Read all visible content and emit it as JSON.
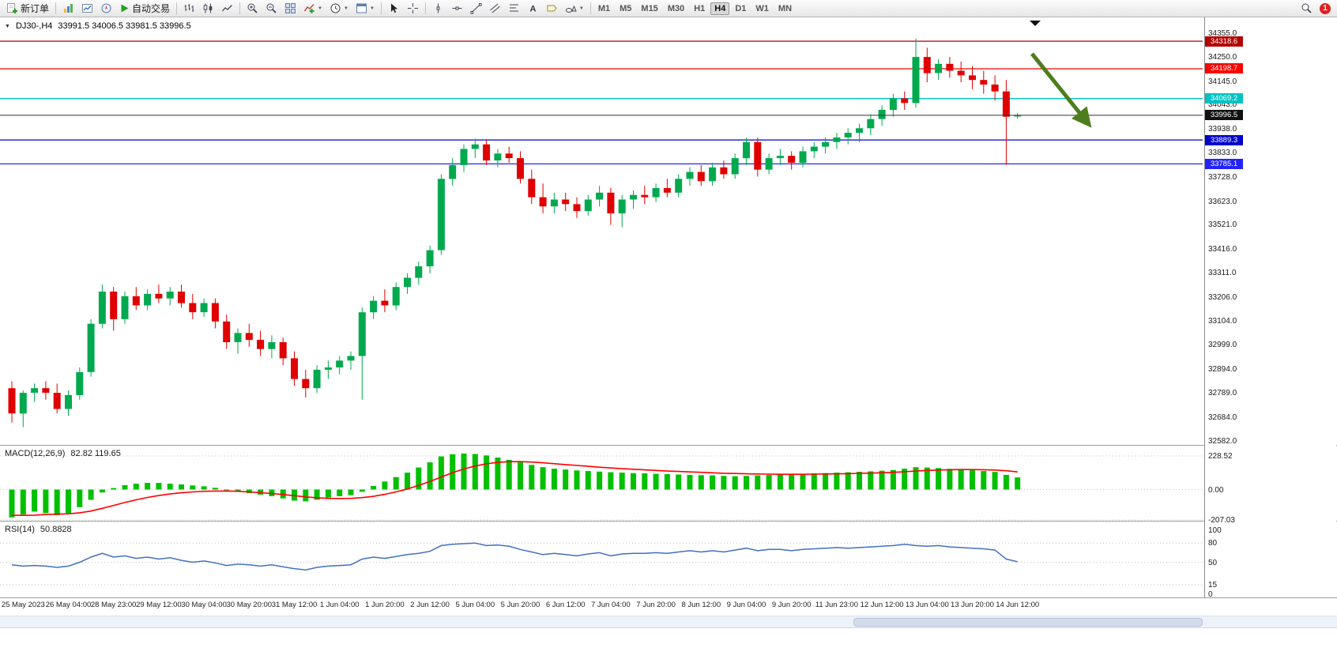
{
  "toolbar": {
    "new_order_label": "新订单",
    "autotrading_label": "自动交易",
    "timeframes": [
      "M1",
      "M5",
      "M15",
      "M30",
      "H1",
      "H4",
      "D1",
      "W1",
      "MN"
    ],
    "active_timeframe": "H4",
    "notification_count": "1",
    "text_tool_letter": "A",
    "dropdown_caret": "▼"
  },
  "chart_header": {
    "caret": "▼",
    "symbol_period": "DJ30-,H4",
    "ohlc_text": "33991.5 34006.5 33981.5 33996.5"
  },
  "chart_data": {
    "type": "candlestick",
    "symbol": "DJ30-",
    "period": "H4",
    "last_ohlc": {
      "open": 33991.5,
      "high": 34006.5,
      "low": 33981.5,
      "close": 33996.5
    },
    "price_scale": {
      "max": 34422,
      "min": 32560
    },
    "price_axis_ticks": [
      "34355.0",
      "34250.0",
      "34145.0",
      "34043.0",
      "33938.0",
      "33833.0",
      "33728.0",
      "33623.0",
      "33521.0",
      "33416.0",
      "33311.0",
      "33206.0",
      "33104.0",
      "32999.0",
      "32894.0",
      "32789.0",
      "32684.0",
      "32582.0"
    ],
    "hlines": [
      {
        "price": 34318.6,
        "label": "34318.6",
        "color": "#b30000"
      },
      {
        "price": 34198.7,
        "label": "34198.7",
        "color": "#ff0000"
      },
      {
        "price": 34069.2,
        "label": "34069.2",
        "color": "#00c2c2"
      },
      {
        "price": 33996.5,
        "label": "33996.5",
        "color": "#333333",
        "badge": "#111111",
        "role": "current-price"
      },
      {
        "price": 33889.3,
        "label": "33889.3",
        "color": "#0000cc"
      },
      {
        "price": 33785.1,
        "label": "33785.1",
        "color": "#2222ff"
      }
    ],
    "colors": {
      "bull": "#00a94e",
      "bear": "#e00000",
      "macd_hist": "#00c000",
      "macd_signal": "#ff0000",
      "rsi": "#4070c0",
      "arrow": "#4e7d1e"
    },
    "candles": [
      [
        32810,
        32840,
        32660,
        32700
      ],
      [
        32700,
        32800,
        32640,
        32790
      ],
      [
        32790,
        32830,
        32750,
        32810
      ],
      [
        32810,
        32840,
        32760,
        32790
      ],
      [
        32790,
        32830,
        32700,
        32720
      ],
      [
        32720,
        32800,
        32690,
        32780
      ],
      [
        32780,
        32900,
        32760,
        32880
      ],
      [
        32880,
        33110,
        32860,
        33090
      ],
      [
        33090,
        33260,
        33070,
        33230
      ],
      [
        33230,
        33250,
        33060,
        33110
      ],
      [
        33110,
        33230,
        33090,
        33210
      ],
      [
        33210,
        33250,
        33150,
        33170
      ],
      [
        33170,
        33240,
        33150,
        33220
      ],
      [
        33220,
        33260,
        33180,
        33200
      ],
      [
        33200,
        33250,
        33170,
        33230
      ],
      [
        33230,
        33260,
        33160,
        33180
      ],
      [
        33180,
        33220,
        33110,
        33140
      ],
      [
        33140,
        33200,
        33120,
        33180
      ],
      [
        33180,
        33200,
        33070,
        33100
      ],
      [
        33100,
        33130,
        32980,
        33010
      ],
      [
        33010,
        33070,
        32960,
        33050
      ],
      [
        33050,
        33090,
        32990,
        33020
      ],
      [
        33020,
        33060,
        32950,
        32980
      ],
      [
        32980,
        33040,
        32940,
        33010
      ],
      [
        33010,
        33030,
        32910,
        32940
      ],
      [
        32940,
        32970,
        32820,
        32850
      ],
      [
        32850,
        32890,
        32770,
        32810
      ],
      [
        32810,
        32910,
        32790,
        32890
      ],
      [
        32890,
        32930,
        32850,
        32900
      ],
      [
        32900,
        32950,
        32870,
        32930
      ],
      [
        32930,
        32970,
        32890,
        32950
      ],
      [
        32950,
        33160,
        32760,
        33140
      ],
      [
        33140,
        33210,
        33110,
        33190
      ],
      [
        33190,
        33240,
        33140,
        33170
      ],
      [
        33170,
        33270,
        33150,
        33250
      ],
      [
        33250,
        33310,
        33220,
        33290
      ],
      [
        33290,
        33360,
        33260,
        33340
      ],
      [
        33340,
        33430,
        33310,
        33410
      ],
      [
        33410,
        33740,
        33390,
        33720
      ],
      [
        33720,
        33810,
        33690,
        33780
      ],
      [
        33780,
        33870,
        33750,
        33850
      ],
      [
        33850,
        33895,
        33810,
        33870
      ],
      [
        33870,
        33890,
        33780,
        33800
      ],
      [
        33800,
        33850,
        33770,
        33830
      ],
      [
        33830,
        33860,
        33790,
        33810
      ],
      [
        33810,
        33840,
        33700,
        33720
      ],
      [
        33720,
        33760,
        33610,
        33640
      ],
      [
        33640,
        33700,
        33570,
        33600
      ],
      [
        33600,
        33660,
        33570,
        33630
      ],
      [
        33630,
        33660,
        33580,
        33610
      ],
      [
        33610,
        33640,
        33550,
        33580
      ],
      [
        33580,
        33650,
        33560,
        33630
      ],
      [
        33630,
        33690,
        33600,
        33660
      ],
      [
        33660,
        33680,
        33520,
        33570
      ],
      [
        33570,
        33650,
        33510,
        33630
      ],
      [
        33630,
        33670,
        33590,
        33650
      ],
      [
        33650,
        33690,
        33610,
        33640
      ],
      [
        33640,
        33700,
        33620,
        33680
      ],
      [
        33680,
        33720,
        33640,
        33660
      ],
      [
        33660,
        33740,
        33640,
        33720
      ],
      [
        33720,
        33770,
        33690,
        33750
      ],
      [
        33750,
        33780,
        33690,
        33710
      ],
      [
        33710,
        33790,
        33690,
        33770
      ],
      [
        33770,
        33800,
        33720,
        33740
      ],
      [
        33740,
        33830,
        33720,
        33810
      ],
      [
        33810,
        33900,
        33780,
        33880
      ],
      [
        33880,
        33900,
        33730,
        33760
      ],
      [
        33760,
        33830,
        33740,
        33810
      ],
      [
        33810,
        33850,
        33780,
        33820
      ],
      [
        33820,
        33840,
        33760,
        33790
      ],
      [
        33790,
        33860,
        33770,
        33840
      ],
      [
        33840,
        33880,
        33810,
        33860
      ],
      [
        33860,
        33900,
        33830,
        33880
      ],
      [
        33880,
        33920,
        33850,
        33900
      ],
      [
        33900,
        33940,
        33870,
        33920
      ],
      [
        33920,
        33960,
        33880,
        33940
      ],
      [
        33940,
        34000,
        33910,
        33980
      ],
      [
        33980,
        34040,
        33950,
        34020
      ],
      [
        34020,
        34090,
        33990,
        34070
      ],
      [
        34070,
        34100,
        34020,
        34050
      ],
      [
        34050,
        34330,
        34030,
        34250
      ],
      [
        34250,
        34290,
        34140,
        34180
      ],
      [
        34180,
        34240,
        34150,
        34220
      ],
      [
        34220,
        34250,
        34160,
        34190
      ],
      [
        34190,
        34230,
        34140,
        34170
      ],
      [
        34170,
        34210,
        34110,
        34150
      ],
      [
        34150,
        34190,
        34090,
        34130
      ],
      [
        34130,
        34170,
        34060,
        34100
      ],
      [
        34100,
        34150,
        33780,
        33990
      ],
      [
        33991.5,
        34006.5,
        33981.5,
        33996.5
      ]
    ],
    "macd": {
      "label": "MACD(12,26,9)",
      "value_text": "82.82 119.65",
      "axis_ticks": [
        "228.52",
        "0.00",
        "-207.03"
      ],
      "tick_values": [
        228.52,
        0,
        -207.03
      ],
      "histogram": [
        -190,
        -170,
        -150,
        -160,
        -175,
        -160,
        -120,
        -70,
        -20,
        10,
        30,
        40,
        45,
        45,
        40,
        35,
        28,
        22,
        12,
        0,
        -12,
        -25,
        -35,
        -45,
        -60,
        -75,
        -80,
        -70,
        -55,
        -45,
        -38,
        -15,
        25,
        55,
        85,
        115,
        150,
        185,
        225,
        240,
        245,
        242,
        232,
        218,
        202,
        185,
        168,
        152,
        142,
        136,
        130,
        126,
        122,
        118,
        115,
        112,
        110,
        107,
        105,
        102,
        100,
        98,
        96,
        93,
        91,
        93,
        96,
        99,
        102,
        104,
        107,
        110,
        112,
        115,
        118,
        121,
        124,
        128,
        133,
        142,
        152,
        150,
        146,
        141,
        136,
        131,
        126,
        120,
        100,
        82.82
      ],
      "signal": [
        -175,
        -176,
        -174,
        -170,
        -168,
        -165,
        -158,
        -146,
        -128,
        -108,
        -88,
        -70,
        -54,
        -41,
        -30,
        -22,
        -16,
        -12,
        -10,
        -10,
        -12,
        -16,
        -21,
        -27,
        -34,
        -42,
        -50,
        -56,
        -60,
        -61,
        -60,
        -55,
        -46,
        -33,
        -16,
        4,
        28,
        55,
        85,
        115,
        140,
        160,
        175,
        185,
        190,
        190,
        187,
        182,
        176,
        170,
        164,
        158,
        152,
        147,
        142,
        138,
        134,
        130,
        126,
        123,
        120,
        117,
        114,
        111,
        109,
        107,
        106,
        105,
        104,
        104,
        104,
        105,
        106,
        107,
        108,
        110,
        112,
        114,
        117,
        121,
        126,
        130,
        133,
        135,
        136,
        136,
        135,
        133,
        128,
        119.65
      ]
    },
    "rsi": {
      "label": "RSI(14)",
      "value_text": "50.8828",
      "axis_ticks": [
        "100",
        "80",
        "50",
        "15",
        "0"
      ],
      "tick_values": [
        100,
        80,
        50,
        15,
        0
      ],
      "levels": [
        80,
        50,
        15
      ],
      "values": [
        46,
        44,
        45,
        44,
        42,
        44,
        50,
        58,
        64,
        58,
        60,
        56,
        58,
        55,
        57,
        53,
        50,
        52,
        49,
        45,
        47,
        46,
        44,
        46,
        43,
        40,
        38,
        42,
        44,
        45,
        46,
        55,
        58,
        56,
        59,
        62,
        64,
        67,
        76,
        78,
        79,
        80,
        76,
        77,
        75,
        70,
        66,
        62,
        64,
        62,
        60,
        63,
        65,
        60,
        63,
        64,
        64,
        65,
        64,
        66,
        68,
        66,
        68,
        66,
        69,
        72,
        68,
        70,
        70,
        68,
        70,
        71,
        72,
        73,
        72,
        73,
        74,
        75,
        76,
        78,
        76,
        75,
        76,
        74,
        73,
        72,
        71,
        69,
        55,
        50.88
      ]
    },
    "time_labels": [
      "25 May 2023",
      "26 May 04:00",
      "28 May 23:00",
      "29 May 12:00",
      "30 May 04:00",
      "30 May 20:00",
      "31 May 12:00",
      "1 Jun 04:00",
      "1 Jun 20:00",
      "2 Jun 12:00",
      "5 Jun 04:00",
      "5 Jun 20:00",
      "6 Jun 12:00",
      "7 Jun 04:00",
      "7 Jun 20:00",
      "8 Jun 12:00",
      "9 Jun 04:00",
      "9 Jun 20:00",
      "11 Jun 23:00",
      "12 Jun 12:00",
      "13 Jun 04:00",
      "13 Jun 20:00",
      "14 Jun 12:00"
    ]
  }
}
